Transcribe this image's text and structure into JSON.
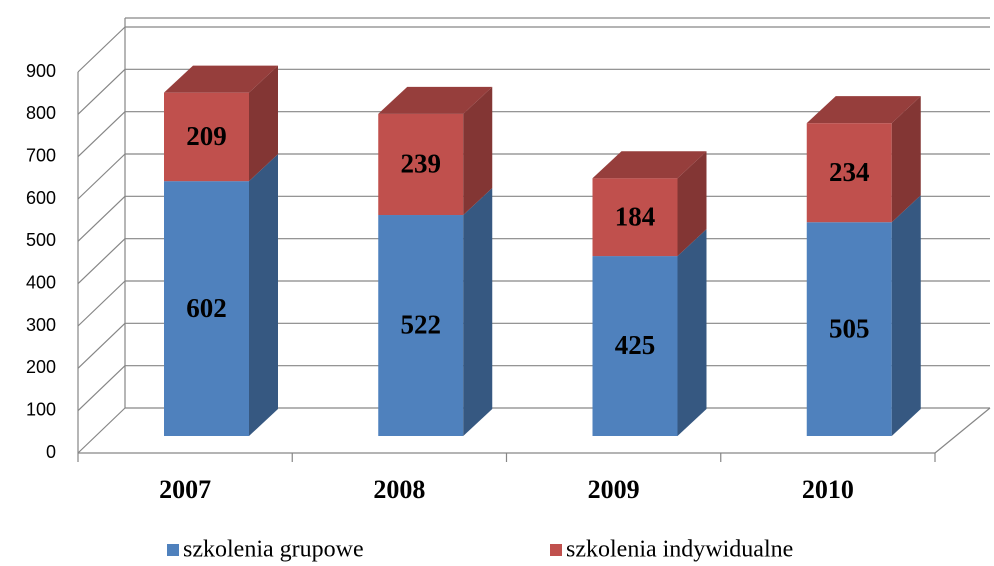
{
  "chart_data": {
    "type": "bar",
    "stacked": true,
    "categories": [
      "2007",
      "2008",
      "2009",
      "2010"
    ],
    "series": [
      {
        "name": "szkolenia grupowe",
        "color": "#4f81bd",
        "values": [
          602,
          522,
          425,
          505
        ]
      },
      {
        "name": "szkolenia indywidualne",
        "color": "#c0504d",
        "values": [
          209,
          239,
          184,
          234
        ]
      }
    ],
    "ylim": [
      0,
      900
    ],
    "yticks": [
      0,
      100,
      200,
      300,
      400,
      500,
      600,
      700,
      800,
      900
    ],
    "grid": true,
    "legend": "bottom"
  }
}
